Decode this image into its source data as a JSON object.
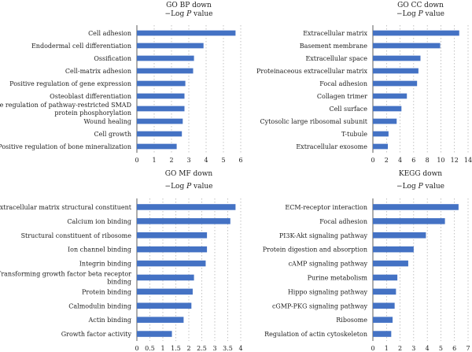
{
  "chart_data": [
    {
      "type": "bar",
      "orientation": "horizontal",
      "title": "GO BP down",
      "xlabel": "−Log P value",
      "xlim": [
        0,
        6
      ],
      "ticks": [
        0,
        1,
        2,
        3,
        4,
        5,
        6
      ],
      "grid": true,
      "categories": [
        [
          "Cell adhesion"
        ],
        [
          "Endodermal cell differentiation"
        ],
        [
          "Ossification"
        ],
        [
          "Cell-matrix adhesion"
        ],
        [
          "Positive regulation of gene expression"
        ],
        [
          "Osteoblast differentiation"
        ],
        [
          "Positive regulation of pathway-restricted SMAD",
          "protein phosphorylation"
        ],
        [
          "Wound healing"
        ],
        [
          "Cell growth"
        ],
        [
          "Positive regulation of bone mineralization"
        ]
      ],
      "values": [
        5.7,
        3.85,
        3.3,
        3.25,
        2.8,
        2.75,
        2.75,
        2.65,
        2.6,
        2.3
      ],
      "color": "#4472c4"
    },
    {
      "type": "bar",
      "orientation": "horizontal",
      "title": "GO CC down",
      "xlabel": "−Log P value",
      "xlim": [
        0,
        14
      ],
      "ticks": [
        0,
        2,
        4,
        6,
        8,
        10,
        12,
        14
      ],
      "grid": true,
      "categories": [
        [
          "Extracellular matrix"
        ],
        [
          "Basement membrane"
        ],
        [
          "Extracellular space"
        ],
        [
          "Proteinaceous extracellular matrix"
        ],
        [
          "Focal adhesion"
        ],
        [
          "Collagen trimer"
        ],
        [
          "Cell surface"
        ],
        [
          "Cytosolic large ribosomal subunit"
        ],
        [
          "T-tubule"
        ],
        [
          "Extracellular exosome"
        ]
      ],
      "values": [
        12.7,
        9.9,
        7.0,
        6.7,
        6.5,
        5.0,
        4.2,
        3.5,
        2.3,
        2.2
      ],
      "color": "#4472c4"
    },
    {
      "type": "bar",
      "orientation": "horizontal",
      "title": "GO MF down",
      "xlabel": "−Log P value",
      "xlim": [
        0,
        4
      ],
      "ticks": [
        0,
        0.5,
        1,
        1.5,
        2,
        2.5,
        3,
        3.5,
        4
      ],
      "grid": true,
      "categories": [
        [
          "Extracellular matrix structural constituent"
        ],
        [
          "Calcium ion binding"
        ],
        [
          "Structural constituent of ribosome"
        ],
        [
          "Ion channel binding"
        ],
        [
          "Integrin binding"
        ],
        [
          "Transforming growth factor beta receptor",
          "binding"
        ],
        [
          "Protein binding"
        ],
        [
          "Calmodulin binding"
        ],
        [
          "Actin binding"
        ],
        [
          "Growth factor activity"
        ]
      ],
      "values": [
        3.8,
        3.6,
        2.7,
        2.7,
        2.65,
        2.2,
        2.15,
        2.1,
        1.8,
        1.35
      ],
      "color": "#4472c4"
    },
    {
      "type": "bar",
      "orientation": "horizontal",
      "title": "KEGG down",
      "xlabel": "−Log P value",
      "xlim": [
        0,
        7
      ],
      "ticks": [
        0,
        1,
        2,
        3,
        4,
        5,
        6,
        7
      ],
      "grid": true,
      "categories": [
        [
          "ECM-receptor interaction"
        ],
        [
          "Focal adhesion"
        ],
        [
          "PI3K-Akt signaling pathway"
        ],
        [
          "Protein digestion and absorption"
        ],
        [
          "cAMP signaling pathway"
        ],
        [
          "Purine metabolism"
        ],
        [
          "Hippo signaling pathway"
        ],
        [
          "cGMP-PKG signaling pathway"
        ],
        [
          "Ribosome"
        ],
        [
          "Regulation of actin cytoskeleton"
        ]
      ],
      "values": [
        6.3,
        5.3,
        3.9,
        3.0,
        2.6,
        1.8,
        1.7,
        1.6,
        1.45,
        1.35
      ],
      "color": "#4472c4"
    }
  ]
}
